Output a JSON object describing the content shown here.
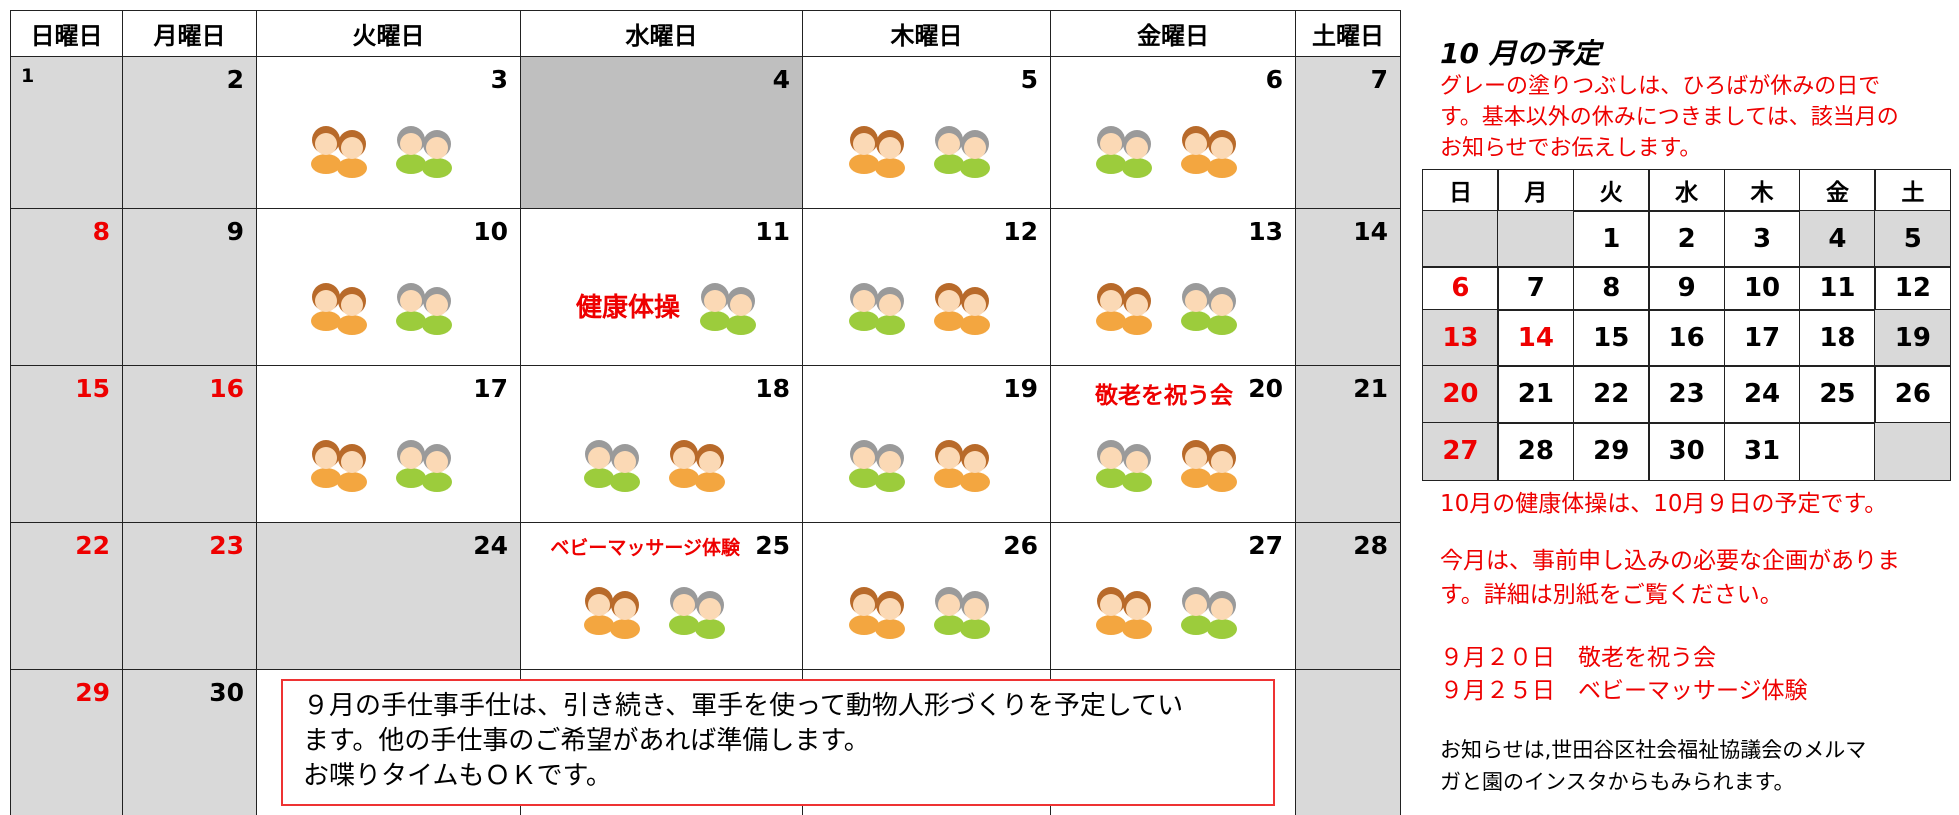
{
  "calendar": {
    "weekdays": [
      "日曜日",
      "月曜日",
      "火曜日",
      "水曜日",
      "木曜日",
      "金曜日",
      "土曜日"
    ],
    "weeks": [
      [
        {
          "day": 1
        },
        {
          "day": 2
        },
        {
          "day": 3
        },
        {
          "day": 4
        },
        {
          "day": 5
        },
        {
          "day": 6
        },
        {
          "day": 7
        }
      ],
      [
        {
          "day": 8
        },
        {
          "day": 9
        },
        {
          "day": 10
        },
        {
          "day": 11,
          "event": "健康体操"
        },
        {
          "day": 12
        },
        {
          "day": 13
        },
        {
          "day": 14
        }
      ],
      [
        {
          "day": 15
        },
        {
          "day": 16
        },
        {
          "day": 17
        },
        {
          "day": 18
        },
        {
          "day": 19
        },
        {
          "day": 20,
          "event": "敬老を祝う会"
        },
        {
          "day": 21
        }
      ],
      [
        {
          "day": 22
        },
        {
          "day": 23
        },
        {
          "day": 24
        },
        {
          "day": 25,
          "event": "ベビーマッサージ体験"
        },
        {
          "day": 26
        },
        {
          "day": 27
        },
        {
          "day": 28
        }
      ],
      [
        {
          "day": 29
        },
        {
          "day": 30
        },
        null,
        null,
        null,
        null,
        null
      ]
    ]
  },
  "note": {
    "lines": [
      "９月の手仕事手仕は、引き続き、軍手を使って動物人形づくりを予定してい",
      "ます。他の手仕事のご希望があれば準備します。",
      "お喋りタイムもＯＫです。"
    ]
  },
  "sidebar": {
    "title": "10 月の予定",
    "notice_lines": [
      "グレーの塗りつぶしは、ひろばが休みの日で",
      "す。基本以外の休みにつきましては、該当月の",
      "お知らせでお伝えします。"
    ],
    "mini_calendar": {
      "weekdays": [
        "日",
        "月",
        "火",
        "水",
        "木",
        "金",
        "土"
      ],
      "weeks": [
        [
          null,
          null,
          1,
          2,
          3,
          4,
          5
        ],
        [
          6,
          7,
          8,
          9,
          10,
          11,
          12
        ],
        [
          13,
          14,
          15,
          16,
          17,
          18,
          19
        ],
        [
          20,
          21,
          22,
          23,
          24,
          25,
          26
        ],
        [
          27,
          28,
          29,
          30,
          31,
          null,
          null
        ]
      ]
    },
    "exercise": "10月の健康体操は、10月９日の予定です。",
    "reservation_lines": [
      "今月は、事前申し込みの必要な企画がありま",
      "す。詳細は別紙をご覧ください。"
    ],
    "events": [
      "９月２０日　敬老を祝う会",
      "９月２５日　ベビーマッサージ体験"
    ],
    "info_lines": [
      "お知らせは,世田谷区社会福祉協議会のメルマ",
      "ガと園のインスタからもみられます。"
    ]
  }
}
